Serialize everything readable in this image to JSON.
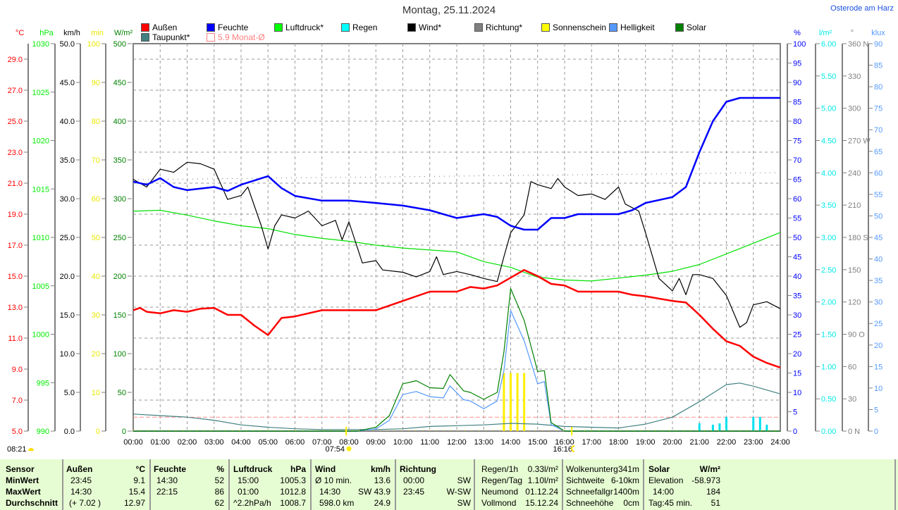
{
  "header": {
    "title": "Montag, 25.11.2024",
    "location": "Osterode am Harz"
  },
  "legend": [
    {
      "label": "Außen",
      "color": "#ff0000"
    },
    {
      "label": "Feuchte",
      "color": "#0000ff"
    },
    {
      "label": "Luftdruck*",
      "color": "#00ff00"
    },
    {
      "label": "Regen",
      "color": "#00ffff"
    },
    {
      "label": "Wind*",
      "color": "#000000"
    },
    {
      "label": "Richtung*",
      "color": "#808080"
    },
    {
      "label": "Sonnenschein",
      "color": "#ffff00"
    },
    {
      "label": "Helligkeit",
      "color": "#5599ff"
    },
    {
      "label": "Solar",
      "color": "#008000"
    },
    {
      "label": "Taupunkt*",
      "color": "#408080"
    },
    {
      "label": "5.9 Monat-Ø",
      "color": "#ff8080"
    }
  ],
  "chart_data": {
    "type": "line",
    "title": "Montag, 25.11.2024",
    "x_ticks": [
      "00:00",
      "01:00",
      "02:00",
      "03:00",
      "04:00",
      "05:00",
      "06:00",
      "07:00",
      "08:00",
      "09:00",
      "10:00",
      "11:00",
      "12:00",
      "13:00",
      "14:00",
      "15:00",
      "16:00",
      "17:00",
      "18:00",
      "19:00",
      "20:00",
      "21:00",
      "22:00",
      "23:00",
      "24:00"
    ],
    "xlim": [
      0,
      24
    ],
    "grid": true,
    "axes": {
      "temp": {
        "unit": "°C",
        "range": [
          5,
          30
        ],
        "labels": [
          "5.0",
          "7.0",
          "9.0",
          "11.0",
          "13.0",
          "15.0",
          "17.0",
          "19.0",
          "21.0",
          "23.0",
          "25.0",
          "27.0",
          "29.0"
        ],
        "color": "#ff0000"
      },
      "press": {
        "unit": "hPa",
        "range": [
          990,
          1030
        ],
        "labels": [
          "990",
          "995",
          "1000",
          "1005",
          "1010",
          "1015",
          "1020",
          "1025",
          "1030"
        ],
        "color": "#00ee00"
      },
      "wind": {
        "unit": "km/h",
        "range": [
          0,
          50
        ],
        "labels": [
          "0.0",
          "5.0",
          "10.0",
          "15.0",
          "20.0",
          "25.0",
          "30.0",
          "35.0",
          "40.0",
          "45.0",
          "50.0"
        ],
        "color": "#000000"
      },
      "min": {
        "unit": "min",
        "range": [
          0,
          100
        ],
        "labels": [
          "0",
          "10",
          "20",
          "30",
          "40",
          "50",
          "60",
          "70",
          "80",
          "90",
          "100"
        ],
        "color": "#e8e800"
      },
      "solar": {
        "unit": "W/m²",
        "range": [
          0,
          500
        ],
        "labels": [
          "0",
          "50",
          "100",
          "150",
          "200",
          "250",
          "300",
          "350",
          "400",
          "450",
          "500"
        ],
        "color": "#008000"
      },
      "hum": {
        "unit": "%",
        "range": [
          0,
          100
        ],
        "labels": [
          "0",
          "5",
          "10",
          "15",
          "20",
          "25",
          "30",
          "35",
          "40",
          "45",
          "50",
          "55",
          "60",
          "65",
          "70",
          "75",
          "80",
          "85",
          "90",
          "95",
          "100"
        ],
        "color": "#0000ff"
      },
      "rain": {
        "unit": "l/m²",
        "range": [
          0,
          6
        ],
        "labels": [
          "0.00",
          "0.50",
          "1.00",
          "1.50",
          "2.00",
          "2.50",
          "3.00",
          "3.50",
          "4.00",
          "4.50",
          "5.00",
          "5.50",
          "6.00"
        ],
        "color": "#00e8e8"
      },
      "dir": {
        "unit": "°",
        "range": [
          0,
          360
        ],
        "labels": [
          "0 N",
          "30",
          "60",
          "90 O",
          "120",
          "150",
          "180 S",
          "210",
          "240",
          "270 W",
          "300",
          "330",
          "360 N"
        ],
        "color": "#808080"
      },
      "lux": {
        "unit": "klux",
        "range": [
          0,
          90
        ],
        "labels": [
          "0",
          "5",
          "10",
          "15",
          "20",
          "25",
          "30",
          "35",
          "40",
          "45",
          "50",
          "55",
          "60",
          "65",
          "70",
          "75",
          "80",
          "85",
          "90"
        ],
        "color": "#5599ff"
      }
    },
    "series": [
      {
        "name": "Taupunkt",
        "axis": "temp",
        "color": "#408080",
        "width": 1.2,
        "x": [
          0,
          1,
          2,
          3,
          4,
          5,
          6,
          7,
          8,
          9,
          10,
          11,
          12,
          13,
          14,
          15,
          16,
          17,
          18,
          19,
          20,
          21,
          22,
          22.5,
          23,
          24
        ],
        "y": [
          6.1,
          6.0,
          5.9,
          5.7,
          5.4,
          5.25,
          5.15,
          5.1,
          5.1,
          5.1,
          5.15,
          5.3,
          5.35,
          5.4,
          5.5,
          5.45,
          5.3,
          5.25,
          5.2,
          5.45,
          5.9,
          6.9,
          8.0,
          8.1,
          7.9,
          7.4
        ]
      },
      {
        "name": "Helligkeit",
        "axis": "lux",
        "color": "#5599ff",
        "width": 1.2,
        "x": [
          0,
          8.3,
          9,
          9.5,
          10,
          10.5,
          11,
          11.5,
          11.75,
          12.25,
          12.5,
          13,
          13.5,
          13.75,
          14,
          14.5,
          15,
          15.25,
          15.5,
          16,
          24
        ],
        "y": [
          0,
          0,
          0.5,
          2.5,
          8.5,
          9.2,
          8,
          7.7,
          10.5,
          7.3,
          7,
          5.2,
          7,
          14,
          28,
          21,
          11,
          11.5,
          1.5,
          0,
          0
        ]
      },
      {
        "name": "Solar",
        "axis": "solar",
        "color": "#008000",
        "width": 1.2,
        "x": [
          0,
          8.3,
          9,
          9.5,
          10,
          10.5,
          11,
          11.5,
          11.75,
          12.25,
          12.5,
          13,
          13.5,
          13.75,
          14,
          14.5,
          15,
          15.25,
          15.5,
          16,
          24
        ],
        "y": [
          0,
          0,
          5,
          20,
          61,
          65,
          56,
          55,
          73,
          52,
          50,
          41,
          50,
          102,
          184,
          143,
          77,
          78,
          11,
          0,
          0
        ]
      },
      {
        "name": "Luftdruck",
        "axis": "press",
        "color": "#00e000",
        "width": 1.2,
        "x": [
          0,
          1,
          2,
          3,
          4,
          5,
          6,
          7,
          8,
          9,
          10,
          11,
          12,
          13,
          14,
          15,
          16,
          17,
          18,
          19,
          20,
          21,
          22,
          23,
          24
        ],
        "y": [
          1012.7,
          1012.8,
          1012.3,
          1011.7,
          1011.2,
          1010.9,
          1010.3,
          1009.9,
          1009.6,
          1009.2,
          1008.9,
          1008.7,
          1008.5,
          1007.5,
          1006.9,
          1005.9,
          1005.6,
          1005.5,
          1005.8,
          1006.1,
          1006.5,
          1007.2,
          1008.3,
          1009.4,
          1010.5
        ]
      },
      {
        "name": "Wind",
        "axis": "wind",
        "color": "#000000",
        "width": 1.2,
        "x": [
          0,
          0.5,
          1,
          1.5,
          2,
          2.5,
          3,
          3.5,
          4,
          4.25,
          4.75,
          5,
          5.25,
          5.5,
          6,
          6.5,
          7,
          7.5,
          7.75,
          8,
          8.5,
          9,
          9.25,
          10,
          10.5,
          11,
          11.25,
          11.5,
          12,
          12.5,
          13,
          13.5,
          13.75,
          14,
          14.5,
          14.75,
          15,
          15.5,
          15.75,
          16,
          16.5,
          17,
          17.5,
          18,
          18.25,
          18.75,
          19,
          19.5,
          20,
          20.25,
          20.5,
          20.75,
          21,
          21.5,
          22,
          22.5,
          22.75,
          23,
          23.5,
          24
        ],
        "y": [
          32.5,
          31.5,
          33.8,
          33.4,
          34.7,
          34.5,
          33.8,
          29.9,
          30.4,
          31.5,
          26.5,
          23.5,
          26.5,
          27.9,
          27.5,
          28.4,
          26.5,
          27.2,
          24.7,
          27,
          21.7,
          22,
          20.8,
          20.5,
          19.9,
          20.6,
          22.5,
          20.2,
          20.6,
          20.2,
          19.7,
          19.3,
          22.5,
          25.6,
          27.9,
          32.2,
          31.8,
          31.3,
          32.6,
          31.5,
          30.4,
          30.6,
          29.9,
          31.5,
          29.3,
          28.4,
          25.6,
          19.7,
          18.1,
          19.7,
          17.6,
          20.2,
          20.2,
          19.7,
          17.5,
          13.4,
          14.0,
          16.3,
          16.7,
          15.8
        ]
      },
      {
        "name": "Außen",
        "axis": "temp",
        "color": "#ff0000",
        "width": 2.5,
        "x": [
          0,
          0.25,
          0.5,
          1,
          1.5,
          2,
          2.5,
          3,
          3.5,
          4,
          4.5,
          5,
          5.5,
          6,
          7,
          8,
          9,
          10,
          11,
          12,
          12.5,
          13,
          13.5,
          14,
          14.5,
          15,
          15.5,
          16,
          16.5,
          18,
          18.5,
          19,
          20,
          20.5,
          21,
          21.5,
          22,
          22.5,
          23,
          23.5,
          24
        ],
        "y": [
          12.8,
          12.95,
          12.7,
          12.6,
          12.8,
          12.7,
          12.9,
          12.95,
          12.5,
          12.5,
          11.8,
          11.2,
          12.3,
          12.4,
          12.8,
          12.8,
          12.8,
          13.4,
          14.0,
          14.0,
          14.3,
          14.2,
          14.4,
          14.9,
          15.4,
          15.0,
          14.5,
          14.4,
          14.0,
          14.0,
          13.8,
          13.7,
          13.4,
          13.3,
          12.5,
          11.6,
          10.8,
          10.5,
          9.8,
          9.4,
          9.1
        ]
      },
      {
        "name": "Feuchte",
        "axis": "hum",
        "color": "#0000ff",
        "width": 2.5,
        "x": [
          0,
          0.5,
          1,
          1.5,
          2,
          3,
          3.5,
          4,
          5,
          5.5,
          6,
          7,
          8,
          9,
          10,
          11,
          12,
          13,
          13.5,
          14,
          14.5,
          15,
          15.5,
          16,
          16.5,
          18,
          18.5,
          19,
          20,
          20.5,
          21,
          21.5,
          22,
          22.5,
          24
        ],
        "y": [
          64.4,
          63.6,
          65.3,
          63,
          62.2,
          63,
          62,
          63.6,
          65.8,
          62.7,
          60.7,
          59.5,
          59.5,
          58.9,
          58.2,
          57,
          55,
          56,
          55.3,
          53,
          52,
          52,
          55,
          55,
          56,
          56,
          57,
          58.9,
          60.4,
          63,
          72,
          80,
          85,
          86,
          86
        ]
      }
    ],
    "sunshine": {
      "axis": "min",
      "x": [
        13.75,
        14,
        14.25,
        14.5
      ],
      "values": [
        15,
        15,
        15,
        15
      ]
    },
    "rain": {
      "axis": "rain",
      "x": [
        21,
        21.5,
        21.75,
        22,
        23,
        23.25,
        23.5
      ],
      "values": [
        0.12,
        0.1,
        0.12,
        0.22,
        0.22,
        0.22,
        0.1
      ]
    },
    "references": {
      "monthly_avg_temp": 5.9,
      "avg_pressure_line": 1008.7
    },
    "markers": {
      "moonrise": "08:21",
      "sunrise": "07:54",
      "sunset": "16:16"
    }
  },
  "table": {
    "rows": [
      "Sensor",
      "MinWert",
      "MaxWert",
      "Durchschnitt"
    ],
    "aussen": {
      "h": "Außen",
      "u": "°C",
      "min_t": "23:45",
      "min_v": "9.1",
      "max_t": "14:30",
      "max_v": "15.4",
      "avg_t": "(+ 7.02 )",
      "avg_v": "12.97"
    },
    "feuchte": {
      "h": "Feuchte",
      "u": "%",
      "min_t": "14:30",
      "min_v": "52",
      "max_t": "22:15",
      "max_v": "86",
      "avg_v": "62"
    },
    "luft": {
      "h": "Luftdruck",
      "u": "hPa",
      "min_t": "15:00",
      "min_v": "1005.3",
      "max_t": "01:00",
      "max_v": "1012.8",
      "avg_t": "^2.2hPa/h",
      "avg_v": "1008.7"
    },
    "wind": {
      "h": "Wind",
      "u": "km/h",
      "min_t": "Ø 10 min.",
      "min_v": "13.6",
      "max_t": "14:30",
      "max_v": "SW 43.9",
      "avg_t": "598.0 km",
      "avg_v": "24.9"
    },
    "richtung": {
      "h": "Richtung",
      "min_t": "00:00",
      "min_v": "SW",
      "max_t": "23:45",
      "max_v": "W-SW",
      "avg_v": "SW"
    },
    "regen": [
      [
        "Regen/1h",
        "0.33l/m²"
      ],
      [
        "Regen/Tag",
        "1.10l/m²"
      ],
      [
        "Neumond",
        "01.12.24"
      ],
      [
        "Vollmond",
        "15.12.24"
      ]
    ],
    "wolken": [
      [
        "Wolkenunterg",
        "341m"
      ],
      [
        "Sichtweite",
        "6-10km"
      ],
      [
        "Schneefallgr",
        "1400m"
      ],
      [
        "Schneehöhe",
        "0cm"
      ]
    ],
    "solar": {
      "h": "Solar",
      "u": "W/m²",
      "rows": [
        [
          "Elevation",
          "-58.973"
        ],
        [
          "14:00",
          "184"
        ],
        [
          "Tag:45 min.",
          "51"
        ]
      ]
    }
  }
}
